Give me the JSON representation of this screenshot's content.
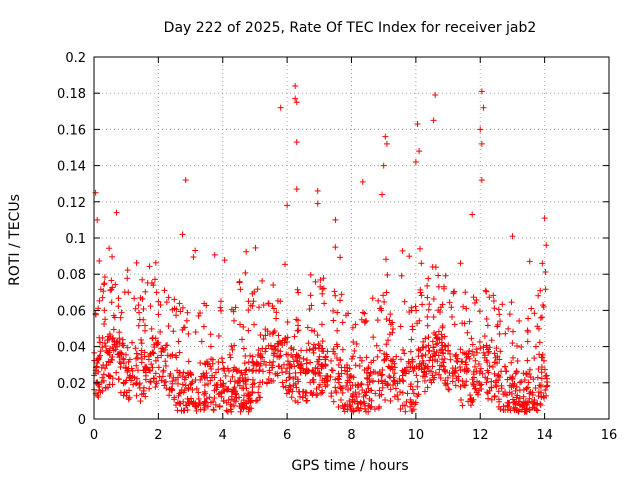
{
  "chart_data": {
    "type": "scatter",
    "title": "Day 222 of 2025, Rate Of TEC Index for receiver jab2",
    "xlabel": "GPS time / hours",
    "ylabel": "ROTI / TECUs",
    "xlim": [
      0,
      16
    ],
    "ylim": [
      0,
      0.2
    ],
    "xticks": [
      0,
      2,
      4,
      6,
      8,
      10,
      12,
      14,
      16
    ],
    "yticks": [
      0,
      0.02,
      0.04,
      0.06,
      0.08,
      0.1,
      0.12,
      0.14,
      0.16,
      0.18,
      0.2
    ],
    "xtick_labels": [
      "0",
      "2",
      "4",
      "6",
      "8",
      "10",
      "12",
      "14",
      "16"
    ],
    "ytick_labels": [
      "0",
      "0.02",
      "0.04",
      "0.06",
      "0.08",
      "0.1",
      "0.12",
      "0.14",
      "0.16",
      "0.18",
      "0.2"
    ],
    "grid": true,
    "marker": "+",
    "marker_color": "#ff0000",
    "x_data_range": [
      0.0,
      14.1
    ],
    "notable_points": [
      {
        "x": 0.05,
        "y": 0.125
      },
      {
        "x": 0.1,
        "y": 0.11
      },
      {
        "x": 0.7,
        "y": 0.114
      },
      {
        "x": 2.85,
        "y": 0.132
      },
      {
        "x": 2.75,
        "y": 0.102
      },
      {
        "x": 5.8,
        "y": 0.172
      },
      {
        "x": 6.25,
        "y": 0.184
      },
      {
        "x": 6.25,
        "y": 0.177
      },
      {
        "x": 6.3,
        "y": 0.175
      },
      {
        "x": 6.3,
        "y": 0.153
      },
      {
        "x": 6.3,
        "y": 0.127
      },
      {
        "x": 6.0,
        "y": 0.118
      },
      {
        "x": 6.95,
        "y": 0.126
      },
      {
        "x": 6.95,
        "y": 0.119
      },
      {
        "x": 7.5,
        "y": 0.11
      },
      {
        "x": 8.35,
        "y": 0.131
      },
      {
        "x": 9.05,
        "y": 0.156
      },
      {
        "x": 9.1,
        "y": 0.152
      },
      {
        "x": 9.0,
        "y": 0.14
      },
      {
        "x": 8.95,
        "y": 0.124
      },
      {
        "x": 10.05,
        "y": 0.163
      },
      {
        "x": 10.1,
        "y": 0.148
      },
      {
        "x": 10.0,
        "y": 0.142
      },
      {
        "x": 10.6,
        "y": 0.179
      },
      {
        "x": 10.55,
        "y": 0.165
      },
      {
        "x": 12.05,
        "y": 0.181
      },
      {
        "x": 12.1,
        "y": 0.172
      },
      {
        "x": 12.0,
        "y": 0.16
      },
      {
        "x": 12.05,
        "y": 0.152
      },
      {
        "x": 12.05,
        "y": 0.132
      },
      {
        "x": 11.75,
        "y": 0.113
      },
      {
        "x": 13.0,
        "y": 0.101
      },
      {
        "x": 14.0,
        "y": 0.111
      },
      {
        "x": 14.05,
        "y": 0.096
      }
    ],
    "density_bands": [
      {
        "x_start": 0.0,
        "x_end": 14.1,
        "y_typical": [
          0.005,
          0.05
        ]
      },
      {
        "x_start": 0.0,
        "x_end": 14.1,
        "y_sparse": [
          0.05,
          0.09
        ]
      }
    ]
  }
}
